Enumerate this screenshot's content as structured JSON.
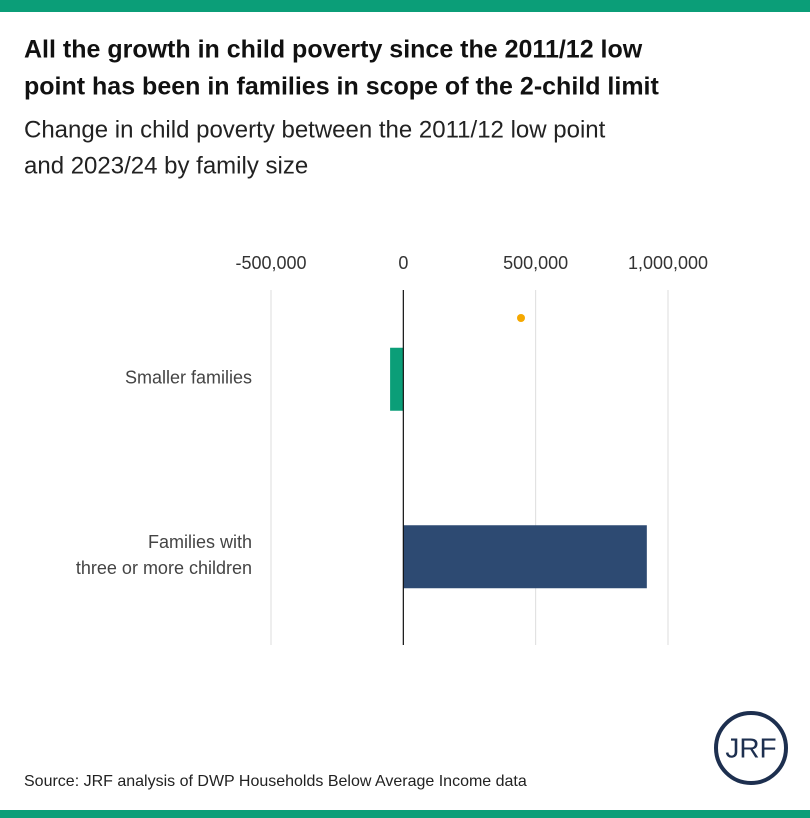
{
  "chart_data": {
    "type": "barh",
    "title": [
      "All the growth in child poverty since the 2011/12 low",
      "point has been in families in scope of the 2-child limit"
    ],
    "subtitle": [
      "Change in child poverty between the 2011/12 low point",
      "and 2023/24 by family size"
    ],
    "categories": [
      [
        "Smaller families"
      ],
      [
        "Families with",
        "three or more children"
      ]
    ],
    "values": [
      -50000,
      920000
    ],
    "colors": [
      "#0b9e78",
      "#2d4a72"
    ],
    "xlim": [
      -500000,
      1000000
    ],
    "xticks": [
      {
        "value": -500000,
        "label": "-500,000"
      },
      0,
      {
        "value": 500000,
        "label": "500,000"
      },
      {
        "value": 1000000,
        "label": "1,000,000"
      }
    ],
    "grid": true,
    "source": "Source: JRF analysis of DWP Households Below Average Income data",
    "logo": "JRF"
  }
}
